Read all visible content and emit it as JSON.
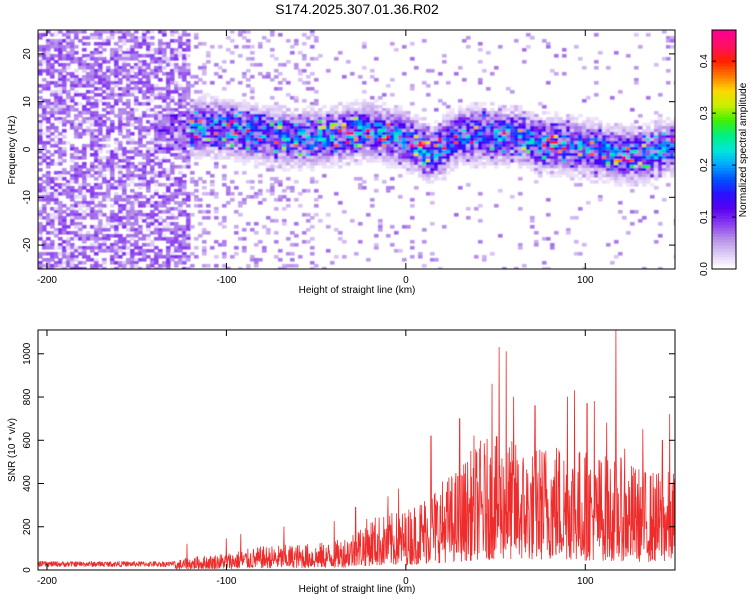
{
  "page_title": "S174.2025.307.01.36.R02",
  "colors": {
    "snr_line": "#ee2c2c",
    "axis": "#000000",
    "colormap": [
      "#ffffff",
      "#dcc8f5",
      "#b48ce8",
      "#8a3cf0",
      "#5a00f0",
      "#2a10ff",
      "#0050ff",
      "#00a8ff",
      "#00e8d8",
      "#00f080",
      "#40f000",
      "#c8f000",
      "#ffd800",
      "#ff7a00",
      "#ff2000",
      "#ff1060",
      "#ff0090"
    ]
  },
  "chart_data": [
    {
      "type": "heatmap",
      "title": "S174.2025.307.01.36.R02",
      "xlabel": "Height of straight line (km)",
      "ylabel": "Frequency (Hz)",
      "xlim": [
        -205,
        150
      ],
      "ylim": [
        -25,
        25
      ],
      "xticks": [
        -200,
        -100,
        0,
        100
      ],
      "xtick_labels": [
        "-200",
        "-100",
        "0",
        "100"
      ],
      "yticks": [
        -20,
        -10,
        0,
        10,
        20
      ],
      "ytick_labels": [
        "-20",
        "-10",
        "0",
        "10",
        "20"
      ],
      "colorbar": {
        "label": "Normalized spectral amplitude",
        "range": [
          0.0,
          0.46
        ],
        "ticks": [
          0.0,
          0.1,
          0.2,
          0.3,
          0.4
        ],
        "tick_labels": [
          "0.0",
          "0.1",
          "0.2",
          "0.3",
          "0.4"
        ]
      },
      "band_center": {
        "x": [
          -125,
          -110,
          -95,
          -80,
          -60,
          -40,
          -20,
          0,
          15,
          30,
          45,
          60,
          75,
          90,
          105,
          120,
          135,
          150
        ],
        "freq": [
          4,
          5,
          4,
          3,
          2,
          3,
          4,
          2,
          -1,
          3,
          3,
          3,
          1,
          1,
          0,
          -1,
          -1,
          1
        ]
      },
      "band_halfwidth_hz": 4,
      "noise_region_x": [
        -205,
        -120
      ],
      "noise_amplitude_max": 0.09
    },
    {
      "type": "line",
      "xlabel": "Height of straight line (km)",
      "ylabel": "SNR (10 * v/v)",
      "xlim": [
        -205,
        150
      ],
      "ylim": [
        0,
        1110
      ],
      "xticks": [
        -200,
        -100,
        0,
        100
      ],
      "xtick_labels": [
        "-200",
        "-100",
        "0",
        "100"
      ],
      "yticks": [
        0,
        200,
        400,
        600,
        800,
        1000
      ],
      "ytick_labels": [
        "0",
        "200",
        "400",
        "600",
        "800",
        "1000"
      ],
      "series": [
        {
          "name": "SNR",
          "envelope_x": [
            -205,
            -130,
            -120,
            -100,
            -80,
            -60,
            -40,
            -30,
            -20,
            -10,
            0,
            10,
            20,
            30,
            40,
            50,
            60,
            70,
            80,
            90,
            100,
            110,
            120,
            130,
            140,
            150
          ],
          "envelope_y": [
            40,
            40,
            60,
            80,
            110,
            120,
            130,
            180,
            250,
            260,
            280,
            350,
            420,
            480,
            600,
            620,
            600,
            560,
            620,
            600,
            560,
            540,
            520,
            480,
            460,
            460
          ],
          "spikes": [
            {
              "x": -122,
              "y": 120
            },
            {
              "x": -100,
              "y": 145
            },
            {
              "x": -92,
              "y": 165
            },
            {
              "x": -68,
              "y": 200
            },
            {
              "x": -40,
              "y": 225
            },
            {
              "x": -28,
              "y": 290
            },
            {
              "x": -10,
              "y": 340
            },
            {
              "x": -4,
              "y": 375
            },
            {
              "x": 14,
              "y": 620
            },
            {
              "x": 30,
              "y": 700
            },
            {
              "x": 38,
              "y": 620
            },
            {
              "x": 48,
              "y": 860
            },
            {
              "x": 52,
              "y": 1030
            },
            {
              "x": 56,
              "y": 1010
            },
            {
              "x": 60,
              "y": 800
            },
            {
              "x": 72,
              "y": 760
            },
            {
              "x": 90,
              "y": 800
            },
            {
              "x": 94,
              "y": 830
            },
            {
              "x": 101,
              "y": 770
            },
            {
              "x": 105,
              "y": 780
            },
            {
              "x": 112,
              "y": 680
            },
            {
              "x": 117,
              "y": 1110
            },
            {
              "x": 122,
              "y": 560
            },
            {
              "x": 132,
              "y": 650
            },
            {
              "x": 143,
              "y": 600
            },
            {
              "x": 147,
              "y": 720
            }
          ]
        }
      ]
    }
  ]
}
